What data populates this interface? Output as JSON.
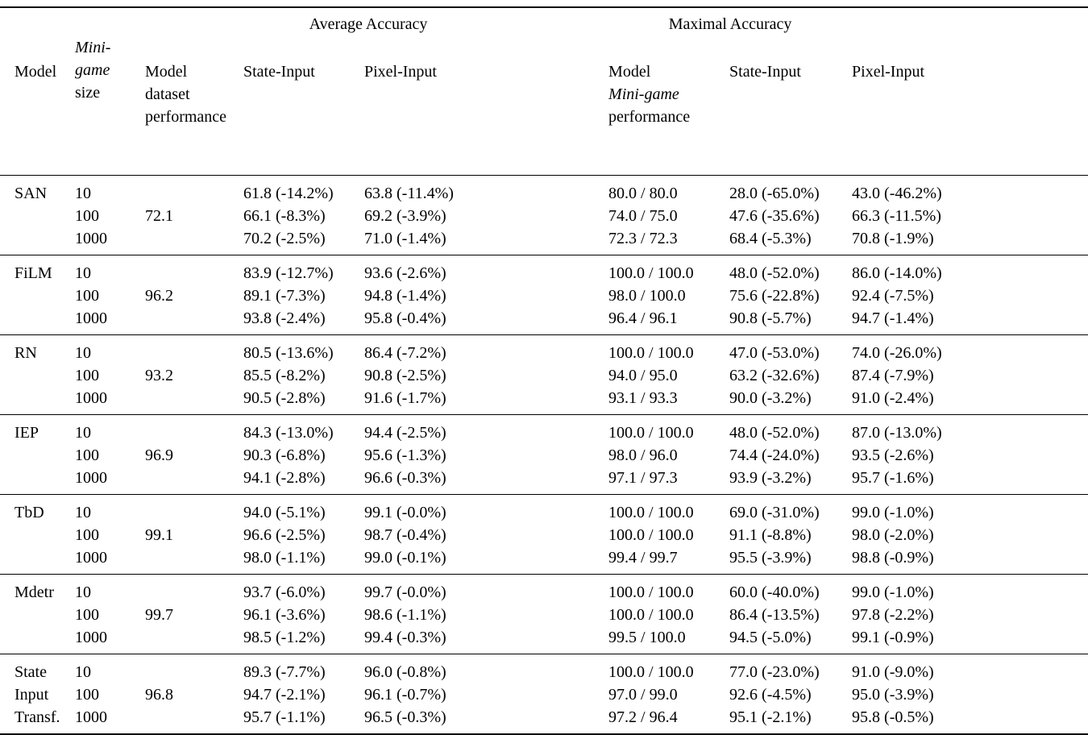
{
  "header": {
    "average_accuracy": "Average Accuracy",
    "maximal_accuracy": "Maximal Accuracy",
    "columns": {
      "model": "Model",
      "minigame_size": [
        "Mini-",
        "game",
        "size"
      ],
      "dataset_performance": [
        "Model",
        "dataset",
        "performance"
      ],
      "state_input_average": "State-Input",
      "pixel_input_average": "Pixel-Input",
      "minigame_performance": [
        "Model",
        "Mini-game",
        "performance"
      ],
      "state_input_maximal": "State-Input",
      "pixel_input_maximal": "Pixel-Input"
    }
  },
  "groups": [
    {
      "model_lines": [
        "SAN",
        "",
        ""
      ],
      "dataset_performance": "72.1",
      "rows": [
        {
          "size": "10",
          "state_avg": "61.8 (-14.2%)",
          "pixel_avg": "63.8 (-11.4%)",
          "mg_perf": "80.0 / 80.0",
          "state_max": "28.0 (-65.0%)",
          "pixel_max": "43.0 (-46.2%)"
        },
        {
          "size": "100",
          "state_avg": "66.1 (-8.3%)",
          "pixel_avg": "69.2 (-3.9%)",
          "mg_perf": "74.0 / 75.0",
          "state_max": "47.6 (-35.6%)",
          "pixel_max": "66.3 (-11.5%)"
        },
        {
          "size": "1000",
          "state_avg": "70.2 (-2.5%)",
          "pixel_avg": "71.0 (-1.4%)",
          "mg_perf": "72.3 / 72.3",
          "state_max": "68.4 (-5.3%)",
          "pixel_max": "70.8 (-1.9%)"
        }
      ]
    },
    {
      "model_lines": [
        "FiLM",
        "",
        ""
      ],
      "dataset_performance": "96.2",
      "rows": [
        {
          "size": "10",
          "state_avg": "83.9 (-12.7%)",
          "pixel_avg": "93.6 (-2.6%)",
          "mg_perf": "100.0 / 100.0",
          "state_max": "48.0 (-52.0%)",
          "pixel_max": "86.0 (-14.0%)"
        },
        {
          "size": "100",
          "state_avg": "89.1 (-7.3%)",
          "pixel_avg": "94.8 (-1.4%)",
          "mg_perf": "98.0 / 100.0",
          "state_max": "75.6 (-22.8%)",
          "pixel_max": "92.4 (-7.5%)"
        },
        {
          "size": "1000",
          "state_avg": "93.8 (-2.4%)",
          "pixel_avg": "95.8 (-0.4%)",
          "mg_perf": "96.4 / 96.1",
          "state_max": "90.8 (-5.7%)",
          "pixel_max": "94.7 (-1.4%)"
        }
      ]
    },
    {
      "model_lines": [
        "RN",
        "",
        ""
      ],
      "dataset_performance": "93.2",
      "rows": [
        {
          "size": "10",
          "state_avg": "80.5 (-13.6%)",
          "pixel_avg": "86.4 (-7.2%)",
          "mg_perf": "100.0 / 100.0",
          "state_max": "47.0 (-53.0%)",
          "pixel_max": "74.0 (-26.0%)"
        },
        {
          "size": "100",
          "state_avg": "85.5 (-8.2%)",
          "pixel_avg": "90.8 (-2.5%)",
          "mg_perf": "94.0 / 95.0",
          "state_max": "63.2 (-32.6%)",
          "pixel_max": "87.4 (-7.9%)"
        },
        {
          "size": "1000",
          "state_avg": "90.5 (-2.8%)",
          "pixel_avg": "91.6 (-1.7%)",
          "mg_perf": "93.1 / 93.3",
          "state_max": "90.0 (-3.2%)",
          "pixel_max": "91.0 (-2.4%)"
        }
      ]
    },
    {
      "model_lines": [
        "IEP",
        "",
        ""
      ],
      "dataset_performance": "96.9",
      "rows": [
        {
          "size": "10",
          "state_avg": "84.3 (-13.0%)",
          "pixel_avg": "94.4 (-2.5%)",
          "mg_perf": "100.0 / 100.0",
          "state_max": "48.0 (-52.0%)",
          "pixel_max": "87.0 (-13.0%)"
        },
        {
          "size": "100",
          "state_avg": "90.3 (-6.8%)",
          "pixel_avg": "95.6 (-1.3%)",
          "mg_perf": "98.0 / 96.0",
          "state_max": "74.4 (-24.0%)",
          "pixel_max": "93.5 (-2.6%)"
        },
        {
          "size": "1000",
          "state_avg": "94.1 (-2.8%)",
          "pixel_avg": "96.6 (-0.3%)",
          "mg_perf": "97.1 / 97.3",
          "state_max": "93.9 (-3.2%)",
          "pixel_max": "95.7 (-1.6%)"
        }
      ]
    },
    {
      "model_lines": [
        "TbD",
        "",
        ""
      ],
      "dataset_performance": "99.1",
      "rows": [
        {
          "size": "10",
          "state_avg": "94.0 (-5.1%)",
          "pixel_avg": "99.1 (-0.0%)",
          "mg_perf": "100.0 / 100.0",
          "state_max": "69.0 (-31.0%)",
          "pixel_max": "99.0 (-1.0%)"
        },
        {
          "size": "100",
          "state_avg": "96.6 (-2.5%)",
          "pixel_avg": "98.7 (-0.4%)",
          "mg_perf": "100.0 / 100.0",
          "state_max": "91.1 (-8.8%)",
          "pixel_max": "98.0 (-2.0%)"
        },
        {
          "size": "1000",
          "state_avg": "98.0 (-1.1%)",
          "pixel_avg": "99.0 (-0.1%)",
          "mg_perf": "99.4 / 99.7",
          "state_max": "95.5 (-3.9%)",
          "pixel_max": "98.8 (-0.9%)"
        }
      ]
    },
    {
      "model_lines": [
        "Mdetr",
        "",
        ""
      ],
      "dataset_performance": "99.7",
      "rows": [
        {
          "size": "10",
          "state_avg": "93.7 (-6.0%)",
          "pixel_avg": "99.7 (-0.0%)",
          "mg_perf": "100.0 / 100.0",
          "state_max": "60.0 (-40.0%)",
          "pixel_max": "99.0 (-1.0%)"
        },
        {
          "size": "100",
          "state_avg": "96.1 (-3.6%)",
          "pixel_avg": "98.6 (-1.1%)",
          "mg_perf": "100.0 / 100.0",
          "state_max": "86.4 (-13.5%)",
          "pixel_max": "97.8 (-2.2%)"
        },
        {
          "size": "1000",
          "state_avg": "98.5 (-1.2%)",
          "pixel_avg": "99.4 (-0.3%)",
          "mg_perf": "99.5 / 100.0",
          "state_max": "94.5 (-5.0%)",
          "pixel_max": "99.1 (-0.9%)"
        }
      ]
    },
    {
      "model_lines": [
        "State",
        "Input",
        "Transf."
      ],
      "dataset_performance": "96.8",
      "rows": [
        {
          "size": "10",
          "state_avg": "89.3 (-7.7%)",
          "pixel_avg": "96.0 (-0.8%)",
          "mg_perf": "100.0 / 100.0",
          "state_max": "77.0 (-23.0%)",
          "pixel_max": "91.0 (-9.0%)"
        },
        {
          "size": "100",
          "state_avg": "94.7 (-2.1%)",
          "pixel_avg": "96.1 (-0.7%)",
          "mg_perf": "97.0 / 99.0",
          "state_max": "92.6 (-4.5%)",
          "pixel_max": "95.0 (-3.9%)"
        },
        {
          "size": "1000",
          "state_avg": "95.7 (-1.1%)",
          "pixel_avg": "96.5 (-0.3%)",
          "mg_perf": "97.2 / 96.4",
          "state_max": "95.1 (-2.1%)",
          "pixel_max": "95.8 (-0.5%)"
        }
      ]
    }
  ]
}
